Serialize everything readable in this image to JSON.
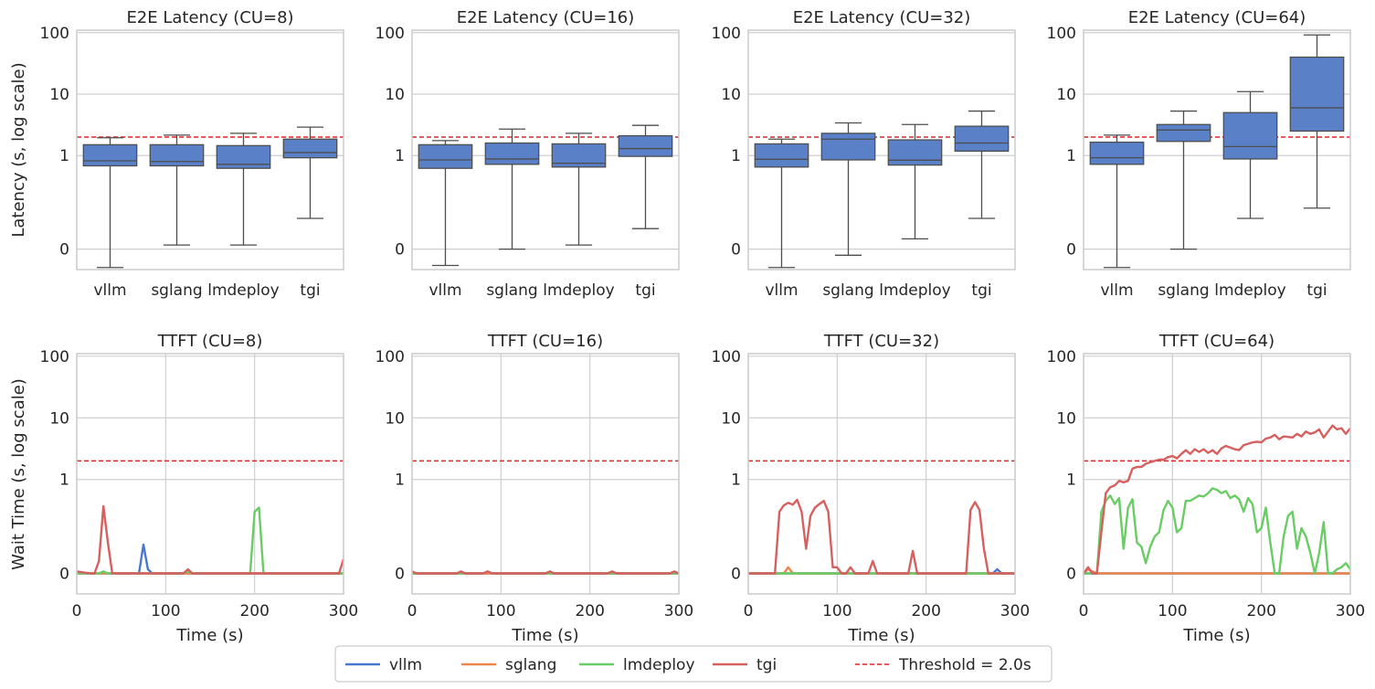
{
  "chart_data": {
    "type": "mixed",
    "threshold": {
      "value": 2.0,
      "label": "Threshold = 2.0s",
      "color": "#d62728"
    },
    "colors": {
      "vllm": "#4878cf",
      "sglang": "#ee854a",
      "lmdeploy": "#6acc64",
      "tgi": "#d65f5f",
      "box_fill": "#5a80c8"
    },
    "legend": {
      "position": "bottom-center",
      "entries": [
        {
          "key": "vllm",
          "label": "vllm",
          "style": "solid"
        },
        {
          "key": "sglang",
          "label": "sglang",
          "style": "solid"
        },
        {
          "key": "lmdeploy",
          "label": "lmdeploy",
          "style": "solid"
        },
        {
          "key": "tgi",
          "label": "tgi",
          "style": "solid"
        },
        {
          "key": "threshold",
          "label": "Threshold = 2.0s",
          "style": "dashed"
        }
      ]
    },
    "latency": {
      "type": "box",
      "ylabel": "Latency (s, log scale)",
      "yticks": [
        {
          "v": 0,
          "label": "0"
        },
        {
          "v": 1,
          "label": "1"
        },
        {
          "v": 10,
          "label": "10"
        },
        {
          "v": 100,
          "label": "100"
        }
      ],
      "ylim": [
        -0.1,
        110
      ],
      "categories": [
        "vllm",
        "sglang",
        "lmdeploy",
        "tgi"
      ],
      "panels": [
        {
          "title": "E2E Latency (CU=8)",
          "boxes": [
            {
              "min": -0.09,
              "q1": 0.68,
              "median": 0.82,
              "q3": 1.5,
              "max": 1.95
            },
            {
              "min": 0.02,
              "q1": 0.68,
              "median": 0.8,
              "q3": 1.5,
              "max": 2.15
            },
            {
              "min": 0.02,
              "q1": 0.62,
              "median": 0.72,
              "q3": 1.45,
              "max": 2.3
            },
            {
              "min": 0.15,
              "q1": 0.92,
              "median": 1.12,
              "q3": 1.85,
              "max": 2.9
            }
          ]
        },
        {
          "title": "E2E Latency (CU=16)",
          "boxes": [
            {
              "min": -0.08,
              "q1": 0.62,
              "median": 0.85,
              "q3": 1.5,
              "max": 1.75
            },
            {
              "min": 0.0,
              "q1": 0.72,
              "median": 0.88,
              "q3": 1.6,
              "max": 2.7
            },
            {
              "min": 0.02,
              "q1": 0.65,
              "median": 0.75,
              "q3": 1.55,
              "max": 2.3
            },
            {
              "min": 0.1,
              "q1": 0.97,
              "median": 1.3,
              "q3": 2.1,
              "max": 3.1
            }
          ]
        },
        {
          "title": "E2E Latency (CU=32)",
          "boxes": [
            {
              "min": -0.09,
              "q1": 0.65,
              "median": 0.87,
              "q3": 1.55,
              "max": 1.85
            },
            {
              "min": -0.03,
              "q1": 0.85,
              "median": 1.85,
              "q3": 2.3,
              "max": 3.4
            },
            {
              "min": 0.05,
              "q1": 0.7,
              "median": 0.84,
              "q3": 1.8,
              "max": 3.2
            },
            {
              "min": 0.15,
              "q1": 1.18,
              "median": 1.6,
              "q3": 3.0,
              "max": 5.3
            }
          ]
        },
        {
          "title": "E2E Latency (CU=64)",
          "boxes": [
            {
              "min": -0.09,
              "q1": 0.72,
              "median": 0.92,
              "q3": 1.65,
              "max": 2.15
            },
            {
              "min": 0.0,
              "q1": 1.7,
              "median": 2.6,
              "q3": 3.2,
              "max": 5.3
            },
            {
              "min": 0.15,
              "q1": 0.88,
              "median": 1.4,
              "q3": 5.0,
              "max": 11
            },
            {
              "min": 0.2,
              "q1": 2.5,
              "median": 6.0,
              "q3": 40,
              "max": 92
            }
          ]
        }
      ]
    },
    "ttft": {
      "type": "line",
      "ylabel": "Wait Time (s, log scale)",
      "xlabel": "Time (s)",
      "xlim": [
        0,
        300
      ],
      "xticks": [
        0,
        100,
        200,
        300
      ],
      "yticks": [
        {
          "v": 0,
          "label": "0"
        },
        {
          "v": 1,
          "label": "1"
        },
        {
          "v": 10,
          "label": "10"
        },
        {
          "v": 100,
          "label": "100"
        }
      ],
      "ylim": [
        -0.1,
        110
      ],
      "panels": [
        {
          "title": "TTFT (CU=8)",
          "series": [
            {
              "name": "vllm",
              "x": [
                0,
                65,
                70,
                75,
                80,
                85,
                300
              ],
              "y": [
                0,
                0,
                0,
                0.14,
                0.02,
                0,
                0
              ]
            },
            {
              "name": "sglang",
              "x": [
                0,
                300
              ],
              "y": [
                0,
                0
              ]
            },
            {
              "name": "lmdeploy",
              "x": [
                0,
                20,
                25,
                30,
                35,
                40,
                115,
                120,
                125,
                130,
                190,
                195,
                200,
                205,
                210,
                300
              ],
              "y": [
                0,
                0,
                0,
                0.01,
                0,
                0,
                0,
                0,
                0.01,
                0,
                0,
                0,
                0.3,
                0.35,
                0,
                0
              ]
            },
            {
              "name": "tgi",
              "x": [
                0,
                15,
                20,
                25,
                30,
                35,
                40,
                115,
                120,
                125,
                130,
                295,
                300
              ],
              "y": [
                0.01,
                0,
                0,
                0.06,
                0.37,
                0.15,
                0,
                0,
                0,
                0.02,
                0,
                0,
                0.07
              ]
            }
          ]
        },
        {
          "title": "TTFT (CU=16)",
          "series": [
            {
              "name": "vllm",
              "x": [
                0,
                300
              ],
              "y": [
                0,
                0
              ]
            },
            {
              "name": "sglang",
              "x": [
                0,
                300
              ],
              "y": [
                0,
                0
              ]
            },
            {
              "name": "lmdeploy",
              "x": [
                0,
                80,
                85,
                90,
                300
              ],
              "y": [
                0,
                0,
                0.01,
                0,
                0
              ]
            },
            {
              "name": "tgi",
              "x": [
                0,
                5,
                10,
                50,
                55,
                60,
                80,
                85,
                90,
                150,
                155,
                160,
                220,
                225,
                230,
                290,
                295,
                300
              ],
              "y": [
                0.01,
                0,
                0,
                0,
                0.01,
                0,
                0,
                0.01,
                0,
                0,
                0.01,
                0,
                0,
                0.01,
                0,
                0,
                0.01,
                0
              ]
            }
          ]
        },
        {
          "title": "TTFT (CU=32)",
          "series": [
            {
              "name": "vllm",
              "x": [
                0,
                270,
                275,
                280,
                285,
                300
              ],
              "y": [
                0,
                0,
                0,
                0.02,
                0,
                0
              ]
            },
            {
              "name": "sglang",
              "x": [
                0,
                35,
                40,
                45,
                50,
                300
              ],
              "y": [
                0,
                0,
                0,
                0.03,
                0,
                0
              ]
            },
            {
              "name": "lmdeploy",
              "x": [
                0,
                300
              ],
              "y": [
                0,
                0
              ]
            },
            {
              "name": "tgi",
              "x": [
                0,
                25,
                30,
                35,
                40,
                45,
                50,
                55,
                60,
                65,
                70,
                75,
                80,
                85,
                90,
                95,
                100,
                105,
                110,
                115,
                120,
                125,
                130,
                135,
                140,
                145,
                150,
                155,
                160,
                165,
                170,
                175,
                180,
                185,
                190,
                195,
                200,
                205,
                210,
                215,
                220,
                225,
                230,
                235,
                240,
                245,
                250,
                255,
                260,
                265,
                270,
                275,
                280,
                285,
                290,
                295,
                300
              ],
              "y": [
                0,
                0,
                0,
                0.3,
                0.38,
                0.42,
                0.39,
                0.47,
                0.3,
                0.12,
                0.28,
                0.35,
                0.4,
                0.45,
                0.3,
                0.03,
                0.03,
                0,
                0,
                0.03,
                0,
                0,
                0,
                0,
                0.06,
                0,
                0,
                0,
                0,
                0,
                0,
                0,
                0,
                0.11,
                0,
                0,
                0,
                0,
                0,
                0,
                0,
                0,
                0,
                0,
                0,
                0,
                0.32,
                0.43,
                0.32,
                0.12,
                0,
                0,
                0,
                0,
                0,
                0,
                0
              ]
            }
          ]
        },
        {
          "title": "TTFT (CU=64)",
          "series": [
            {
              "name": "vllm",
              "x": [
                0,
                300
              ],
              "y": [
                0,
                0
              ]
            },
            {
              "name": "sglang",
              "x": [
                0,
                5,
                10,
                15,
                300
              ],
              "y": [
                0,
                0.02,
                0.01,
                0,
                0
              ]
            },
            {
              "name": "lmdeploy",
              "x": [
                0,
                5,
                10,
                15,
                20,
                25,
                30,
                35,
                40,
                45,
                50,
                55,
                60,
                65,
                70,
                75,
                80,
                85,
                90,
                95,
                100,
                105,
                110,
                115,
                120,
                125,
                130,
                135,
                140,
                145,
                150,
                155,
                160,
                165,
                170,
                175,
                180,
                185,
                190,
                195,
                200,
                205,
                210,
                215,
                220,
                225,
                230,
                235,
                240,
                245,
                250,
                255,
                260,
                265,
                270,
                275,
                280,
                285,
                290,
                295,
                300
              ],
              "y": [
                0,
                0,
                0,
                0,
                0.3,
                0.45,
                0.55,
                0.4,
                0.5,
                0.12,
                0.35,
                0.48,
                0.15,
                0.13,
                0.05,
                0.13,
                0.18,
                0.2,
                0.32,
                0.45,
                0.35,
                0.2,
                0.22,
                0.45,
                0.45,
                0.5,
                0.55,
                0.53,
                0.6,
                0.72,
                0.68,
                0.6,
                0.65,
                0.5,
                0.55,
                0.48,
                0.3,
                0.5,
                0.4,
                0.2,
                0.22,
                0.35,
                0.15,
                0,
                0,
                0.18,
                0.28,
                0.3,
                0.12,
                0.22,
                0.18,
                0.1,
                0,
                0.1,
                0.25,
                0,
                0,
                0.02,
                0.03,
                0.05,
                0.02
              ]
            },
            {
              "name": "tgi",
              "x": [
                0,
                5,
                10,
                15,
                20,
                25,
                30,
                35,
                40,
                45,
                50,
                55,
                60,
                65,
                70,
                75,
                80,
                85,
                90,
                95,
                100,
                105,
                110,
                115,
                120,
                125,
                130,
                135,
                140,
                145,
                150,
                155,
                160,
                165,
                170,
                175,
                180,
                185,
                190,
                195,
                200,
                205,
                210,
                215,
                220,
                225,
                230,
                235,
                240,
                245,
                250,
                255,
                260,
                265,
                270,
                275,
                280,
                285,
                290,
                295,
                300
              ],
              "y": [
                0,
                0.03,
                0,
                0,
                0.2,
                0.6,
                0.75,
                0.8,
                0.95,
                0.9,
                0.95,
                1.5,
                1.6,
                1.6,
                1.8,
                1.9,
                2.0,
                2.1,
                2.1,
                2.3,
                2.4,
                2.2,
                2.6,
                3.0,
                2.6,
                3.1,
                2.8,
                3.1,
                2.7,
                3.0,
                2.6,
                3.2,
                3.5,
                3.3,
                3.1,
                3.0,
                3.6,
                3.8,
                4.0,
                4.1,
                4.0,
                4.6,
                4.8,
                5.3,
                4.5,
                5.0,
                4.9,
                4.8,
                5.5,
                5.0,
                6.0,
                5.5,
                5.8,
                6.5,
                4.8,
                6.0,
                7.5,
                6.5,
                6.8,
                5.5,
                6.8
              ]
            }
          ]
        }
      ]
    }
  }
}
